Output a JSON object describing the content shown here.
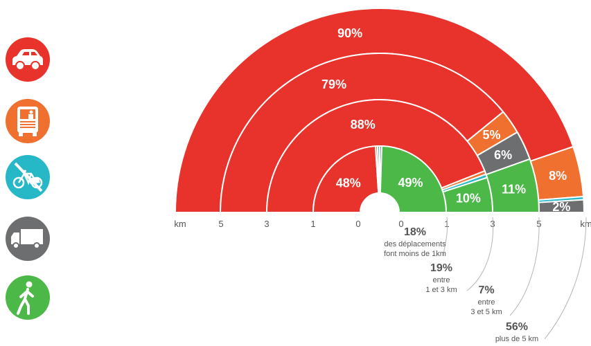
{
  "modes": [
    {
      "icon": "car-icon",
      "color": "#e8322c"
    },
    {
      "icon": "bus-icon",
      "color": "#f07030"
    },
    {
      "icon": "no-two-wheeler-icon",
      "color": "#27b8c8"
    },
    {
      "icon": "truck-icon",
      "color": "#6d6e70"
    },
    {
      "icon": "pedestrian-icon",
      "color": "#4cb848"
    }
  ],
  "chart_data": {
    "type": "pie",
    "subtype": "nested-semicircle",
    "axis_labels_left": [
      "km",
      "5",
      "3",
      "1",
      "0"
    ],
    "axis_labels_right": [
      "0",
      "1",
      "3",
      "5",
      "km"
    ],
    "rings": [
      {
        "distance_band": "0-1 km",
        "segments": [
          {
            "mode": "car",
            "value": 48,
            "label": "48%"
          },
          {
            "mode": "bus",
            "value": 1
          },
          {
            "mode": "two-wheeler",
            "value": 1
          },
          {
            "mode": "truck",
            "value": 1
          },
          {
            "mode": "walk",
            "value": 49,
            "label": "49%"
          }
        ]
      },
      {
        "distance_band": "1-3 km",
        "segments": [
          {
            "mode": "car",
            "value": 88,
            "label": "88%"
          },
          {
            "mode": "bus",
            "value": 1
          },
          {
            "mode": "two-wheeler",
            "value": 1
          },
          {
            "mode": "truck",
            "value": 0
          },
          {
            "mode": "walk",
            "value": 10,
            "label": "10%"
          }
        ]
      },
      {
        "distance_band": "3-5 km",
        "segments": [
          {
            "mode": "car",
            "value": 79,
            "label": "79%"
          },
          {
            "mode": "bus",
            "value": 5,
            "label": "5%"
          },
          {
            "mode": "two-wheeler",
            "value": 0
          },
          {
            "mode": "truck",
            "value": 6,
            "label": "6%"
          },
          {
            "mode": "walk",
            "value": 11,
            "label": "11%"
          }
        ]
      },
      {
        "distance_band": "plus de 5 km",
        "segments": [
          {
            "mode": "car",
            "value": 90,
            "label": "90%"
          },
          {
            "mode": "bus",
            "value": 8,
            "label": "8%"
          },
          {
            "mode": "two-wheeler",
            "value": 0.5
          },
          {
            "mode": "truck",
            "value": 2,
            "label": "2%"
          }
        ]
      }
    ],
    "annotations": [
      {
        "value": "18%",
        "text": [
          "des déplacements",
          "font moins de 1km"
        ]
      },
      {
        "value": "19%",
        "text": [
          "entre",
          "1 et 3 km"
        ]
      },
      {
        "value": "7%",
        "text": [
          "entre",
          "3 et 5 km"
        ]
      },
      {
        "value": "56%",
        "text": [
          "plus de 5 km"
        ]
      }
    ]
  }
}
